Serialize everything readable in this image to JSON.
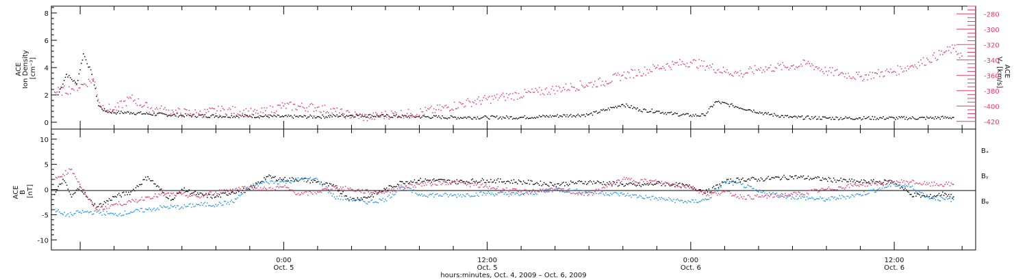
{
  "colors": {
    "black": "#000000",
    "red": "#e8386a",
    "blue": "#1e90e8"
  },
  "chart_data": [
    {
      "type": "scatter",
      "title": "",
      "x_range_hours": [
        -13.7,
        40.8
      ],
      "ylim": [
        -0.5,
        8.5
      ],
      "ylabel": [
        "ACE",
        "Ion Density",
        "[cm⁻³]"
      ],
      "yticks": [
        0,
        2,
        4,
        6,
        8
      ],
      "right_axis": {
        "ylim": [
          -430,
          -270
        ],
        "ylabel": [
          "ACE",
          "Vₓ [km/s]"
        ],
        "yticks": [
          -420,
          -400,
          -380,
          -360,
          -340,
          -320,
          -300,
          -280
        ]
      },
      "series": [
        {
          "color": "black",
          "axis": "left",
          "x": [
            -13.3,
            -12.8,
            -12.2,
            -11.8,
            -11.3,
            -10.9,
            -10.5,
            -9.8,
            -9.0,
            -8.0,
            -6.0,
            -4.0,
            -2.0,
            0.0,
            2.0,
            4.0,
            6.0,
            8.0,
            10.0,
            12.0,
            14.0,
            16.0,
            18.0,
            19.0,
            20.0,
            21.0,
            22.0,
            23.0,
            24.0,
            24.8,
            25.5,
            26.5,
            27.5,
            28.5,
            30.0,
            32.0,
            34.0,
            36.0,
            38.0,
            39.5
          ],
          "y": [
            2.0,
            3.5,
            2.8,
            5.0,
            3.5,
            1.2,
            0.8,
            0.7,
            0.7,
            0.6,
            0.5,
            0.45,
            0.45,
            0.4,
            0.4,
            0.5,
            0.45,
            0.4,
            0.35,
            0.35,
            0.35,
            0.45,
            0.55,
            0.9,
            1.3,
            0.9,
            0.8,
            0.6,
            0.5,
            0.5,
            1.5,
            1.2,
            0.9,
            0.6,
            0.35,
            0.3,
            0.3,
            0.3,
            0.3,
            0.35
          ]
        },
        {
          "color": "red",
          "axis": "right",
          "x": [
            -13.5,
            -12.5,
            -11.8,
            -11.2,
            -10.8,
            -10.0,
            -9.0,
            -8.0,
            -6.5,
            -5.0,
            -3.5,
            -1.5,
            0.0,
            2.0,
            3.5,
            5.0,
            6.5,
            7.5,
            9.0,
            11.0,
            13.0,
            15.0,
            17.0,
            19.0,
            20.0,
            21.0,
            22.0,
            23.0,
            24.0,
            25.0,
            26.0,
            27.0,
            28.0,
            29.0,
            30.0,
            31.0,
            32.0,
            33.0,
            34.0,
            35.0,
            36.0,
            37.0,
            38.0,
            39.0,
            39.5,
            40.0
          ],
          "y": [
            -382,
            -378,
            -372,
            -365,
            -400,
            -405,
            -390,
            -402,
            -408,
            -410,
            -405,
            -410,
            -400,
            -402,
            -410,
            -415,
            -410,
            -410,
            -405,
            -395,
            -388,
            -382,
            -375,
            -368,
            -360,
            -356,
            -350,
            -346,
            -343,
            -348,
            -355,
            -358,
            -352,
            -350,
            -348,
            -345,
            -355,
            -358,
            -362,
            -358,
            -355,
            -348,
            -340,
            -330,
            -325,
            -335
          ]
        }
      ],
      "shown_as": "Panel 1: upper panel, scatter dots"
    },
    {
      "type": "scatter",
      "title": "",
      "x_range_hours": [
        -13.7,
        40.8
      ],
      "ylim": [
        -12,
        12
      ],
      "ylabel": [
        "ACE",
        "B",
        "[nT]"
      ],
      "yticks": [
        -10,
        -5,
        0,
        5,
        10
      ],
      "zero_line": true,
      "legend": [
        {
          "label": "Bₓ",
          "color": "black"
        },
        {
          "label": "Bᵧ",
          "color": "blue"
        },
        {
          "label": "Bᵩ",
          "color": "red"
        }
      ],
      "legend_placement": "right, outside plot",
      "series": [
        {
          "name": "Bx",
          "color": "black",
          "x": [
            -13.5,
            -13.0,
            -12.5,
            -12.0,
            -11.5,
            -11.0,
            -10.0,
            -9.0,
            -8.0,
            -7.0,
            -6.5,
            -6.0,
            -5.0,
            -4.0,
            -3.0,
            -2.0,
            -1.0,
            0.0,
            1.0,
            2.0,
            3.0,
            4.0,
            5.0,
            6.0,
            7.0,
            8.0,
            9.0,
            10.0,
            12.0,
            14.0,
            16.0,
            18.0,
            20.0,
            21.0,
            22.0,
            23.0,
            24.0,
            25.0,
            26.0,
            27.0,
            28.0,
            30.0,
            32.0,
            34.0,
            36.0,
            37.0,
            38.0,
            39.0,
            39.5
          ],
          "y": [
            -1.0,
            2.0,
            -1.5,
            0.5,
            -2.0,
            -3.5,
            -1.5,
            -0.5,
            2.5,
            -1.0,
            -2.0,
            0.0,
            -1.0,
            -1.5,
            -0.5,
            0.0,
            2.5,
            2.0,
            2.0,
            1.5,
            0.5,
            -2.0,
            -1.5,
            0.0,
            1.5,
            1.8,
            1.8,
            1.5,
            1.8,
            1.5,
            1.0,
            1.5,
            1.0,
            0.8,
            1.2,
            1.0,
            0.5,
            -0.5,
            1.5,
            2.0,
            2.0,
            2.5,
            2.0,
            1.5,
            1.5,
            -1.0,
            -1.5,
            -0.8,
            -1.5
          ]
        },
        {
          "name": "By",
          "color": "blue",
          "x": [
            -13.5,
            -13.0,
            -12.5,
            -12.0,
            -11.0,
            -10.0,
            -9.0,
            -8.0,
            -7.0,
            -6.0,
            -5.0,
            -4.0,
            -3.0,
            -2.0,
            -1.0,
            0.0,
            1.0,
            2.0,
            3.0,
            4.0,
            5.0,
            6.0,
            7.0,
            8.0,
            10.0,
            12.0,
            14.0,
            16.0,
            18.0,
            20.0,
            22.0,
            24.0,
            25.0,
            26.0,
            27.0,
            28.0,
            30.0,
            32.0,
            34.0,
            36.0,
            37.0,
            38.0,
            39.0,
            39.5
          ],
          "y": [
            -4.0,
            -5.0,
            -5.0,
            -4.5,
            -4.5,
            -5.0,
            -4.5,
            -4.0,
            -3.5,
            -3.5,
            -3.0,
            -3.0,
            -2.5,
            0.5,
            1.5,
            1.5,
            2.0,
            2.0,
            -1.5,
            -2.0,
            -2.5,
            -2.0,
            0.5,
            -1.0,
            -1.2,
            -0.8,
            -1.0,
            0.0,
            -0.5,
            -1.0,
            -1.8,
            -2.5,
            -2.0,
            1.5,
            1.0,
            -0.5,
            -1.5,
            -2.0,
            -1.0,
            1.0,
            0.5,
            -1.5,
            -2.0,
            -2.0
          ]
        },
        {
          "name": "Bz",
          "color": "red",
          "x": [
            -13.5,
            -13.0,
            -12.5,
            -12.0,
            -11.5,
            -11.0,
            -10.0,
            -9.0,
            -8.0,
            -7.0,
            -6.0,
            -5.0,
            -4.0,
            -3.0,
            -2.0,
            -1.0,
            0.0,
            1.0,
            2.0,
            3.0,
            4.0,
            5.0,
            6.0,
            7.0,
            8.0,
            10.0,
            12.0,
            14.0,
            16.0,
            18.0,
            20.0,
            22.0,
            24.0,
            25.0,
            26.0,
            27.0,
            28.0,
            30.0,
            32.0,
            34.0,
            36.0,
            37.0,
            38.0,
            39.0,
            39.5
          ],
          "y": [
            2.0,
            3.0,
            4.0,
            1.0,
            -2.0,
            -4.0,
            -3.0,
            -2.5,
            -1.5,
            -1.0,
            -1.0,
            -1.5,
            -0.5,
            0.0,
            0.5,
            0.0,
            0.5,
            -1.0,
            -0.5,
            0.5,
            0.0,
            -0.5,
            -0.5,
            0.5,
            1.0,
            1.5,
            0.5,
            -0.5,
            0.0,
            -1.0,
            2.0,
            1.5,
            0.5,
            -1.0,
            -0.5,
            -1.5,
            -1.5,
            -1.0,
            0.0,
            1.0,
            1.5,
            1.5,
            1.0,
            1.0,
            1.0
          ]
        }
      ],
      "shown_as": "Panel 2: lower panel, scatter dots"
    }
  ],
  "xaxis": {
    "ticks": [
      {
        "hours": 0,
        "time": "0:00",
        "date": "Oct. 5"
      },
      {
        "hours": 12,
        "time": "12:00",
        "date": "Oct. 5"
      },
      {
        "hours": 24,
        "time": "0:00",
        "date": "Oct. 6"
      },
      {
        "hours": 36,
        "time": "12:00",
        "date": "Oct. 6"
      }
    ],
    "label": "hours:minutes, Oct.  4, 2009 – Oct.  6, 2009"
  }
}
